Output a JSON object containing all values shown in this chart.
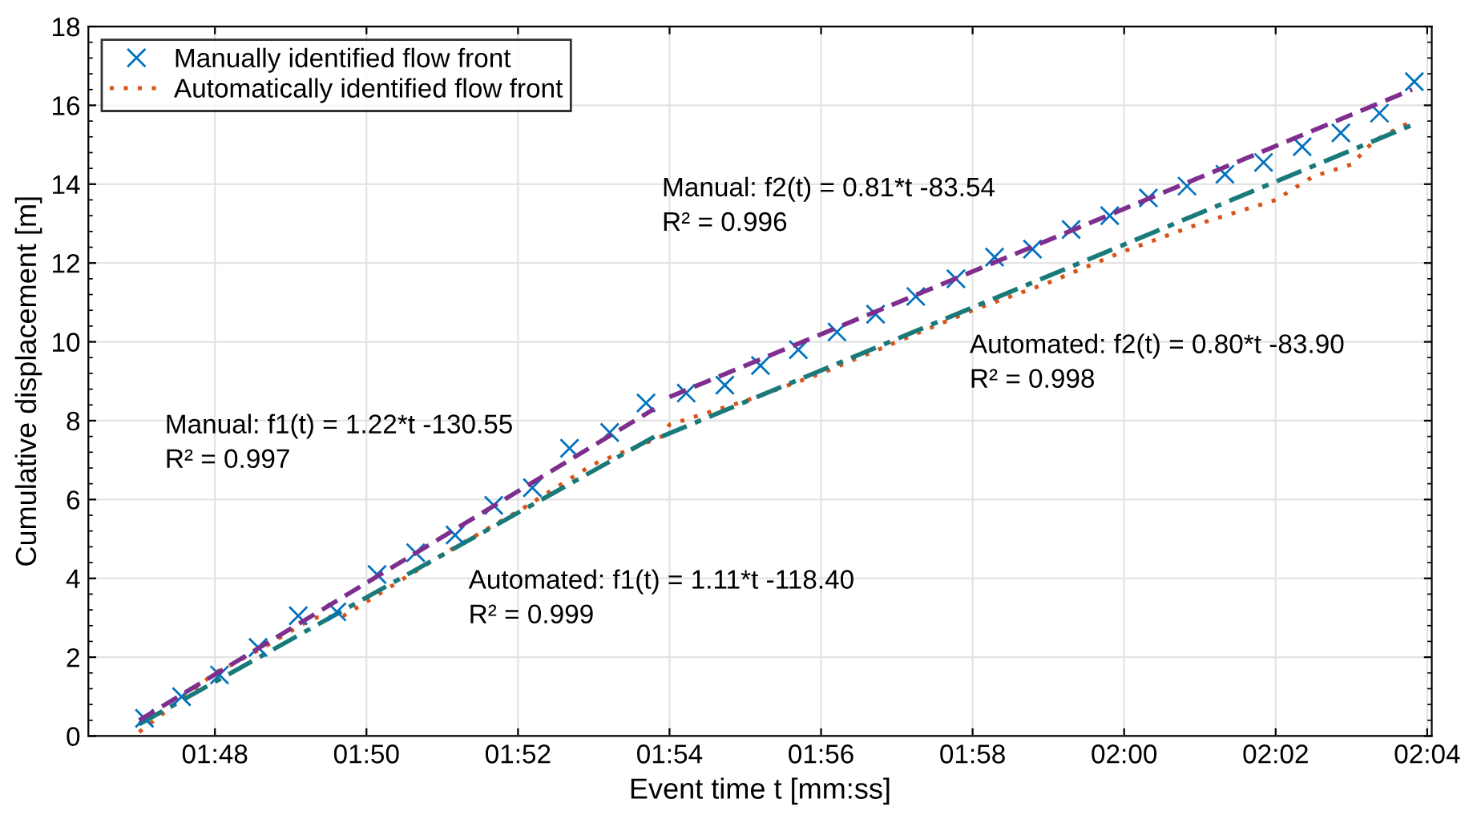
{
  "chart_data": {
    "type": "scatter",
    "xlabel": "Event time t [mm:ss]",
    "ylabel": "Cumulative displacement [m]",
    "xlim": [
      106.33,
      124.06
    ],
    "ylim": [
      0,
      18
    ],
    "xticks": [
      {
        "value": 108,
        "label": "01:48"
      },
      {
        "value": 110,
        "label": "01:50"
      },
      {
        "value": 112,
        "label": "01:52"
      },
      {
        "value": 114,
        "label": "01:54"
      },
      {
        "value": 116,
        "label": "01:56"
      },
      {
        "value": 118,
        "label": "01:58"
      },
      {
        "value": 120,
        "label": "02:00"
      },
      {
        "value": 122,
        "label": "02:02"
      },
      {
        "value": 124,
        "label": "02:04"
      }
    ],
    "yticks": [
      0,
      2,
      4,
      6,
      8,
      10,
      12,
      14,
      16,
      18
    ],
    "grid": true,
    "legend": "top left",
    "series": [
      {
        "name": "Manually identified flow front",
        "marker": "cross",
        "color": "#0072bd",
        "x": [
          107.07,
          107.56,
          108.06,
          108.57,
          109.1,
          109.61,
          110.14,
          110.65,
          111.17,
          111.68,
          112.19,
          112.68,
          113.21,
          113.69,
          114.22,
          114.73,
          115.2,
          115.7,
          116.21,
          116.72,
          117.25,
          117.78,
          118.29,
          118.79,
          119.3,
          119.81,
          120.32,
          120.83,
          121.33,
          121.84,
          122.35,
          122.86,
          123.37,
          123.83
        ],
        "values": [
          0.45,
          1.0,
          1.55,
          2.25,
          3.05,
          3.15,
          4.1,
          4.65,
          5.1,
          5.85,
          6.3,
          7.3,
          7.7,
          8.45,
          8.7,
          8.9,
          9.4,
          9.8,
          10.25,
          10.7,
          11.15,
          11.6,
          12.15,
          12.35,
          12.85,
          13.2,
          13.65,
          13.95,
          14.25,
          14.55,
          14.95,
          15.3,
          15.8,
          16.6
        ]
      },
      {
        "name": "Automatically identified flow front",
        "type": "line",
        "line_style": "dotted",
        "color": "#d95319",
        "x": [
          107.0,
          108.0,
          108.6,
          109.3,
          109.7,
          111.0,
          112.0,
          113.0,
          113.9,
          114.0,
          115.0,
          116.0,
          117.0,
          118.0,
          119.0,
          120.0,
          121.0,
          122.0,
          122.5,
          123.0,
          123.3,
          123.8
        ],
        "values": [
          0.1,
          1.6,
          2.2,
          3.0,
          3.05,
          4.6,
          5.7,
          6.9,
          7.6,
          7.9,
          8.5,
          9.2,
          10.0,
          10.8,
          11.5,
          12.3,
          13.0,
          13.6,
          14.2,
          14.5,
          15.1,
          15.6
        ]
      },
      {
        "type": "line",
        "line_style": "dashed",
        "color": "#7e2f8e",
        "x": [
          107.0,
          113.8
        ],
        "values": [
          0.4,
          8.3
        ]
      },
      {
        "type": "line",
        "line_style": "dashed",
        "color": "#7e2f8e",
        "x": [
          114.0,
          123.8
        ],
        "values": [
          8.6,
          16.4
        ]
      },
      {
        "type": "line",
        "line_style": "dashdot",
        "color": "#1a7a7a",
        "x": [
          107.0,
          113.9
        ],
        "values": [
          0.3,
          7.7
        ]
      },
      {
        "type": "line",
        "line_style": "dashdot",
        "color": "#1a7a7a",
        "x": [
          113.9,
          123.8
        ],
        "values": [
          7.6,
          15.5
        ]
      }
    ],
    "annotations": [
      "Manual: f1(t) = 1.22*t -130.55\nR² = 0.997",
      "Automated: f1(t) = 1.11*t -118.40\nR² = 0.999",
      "Manual: f2(t) = 0.81*t -83.54\nR² = 0.996",
      "Automated: f2(t) = 0.80*t -83.90\nR² = 0.998"
    ]
  }
}
